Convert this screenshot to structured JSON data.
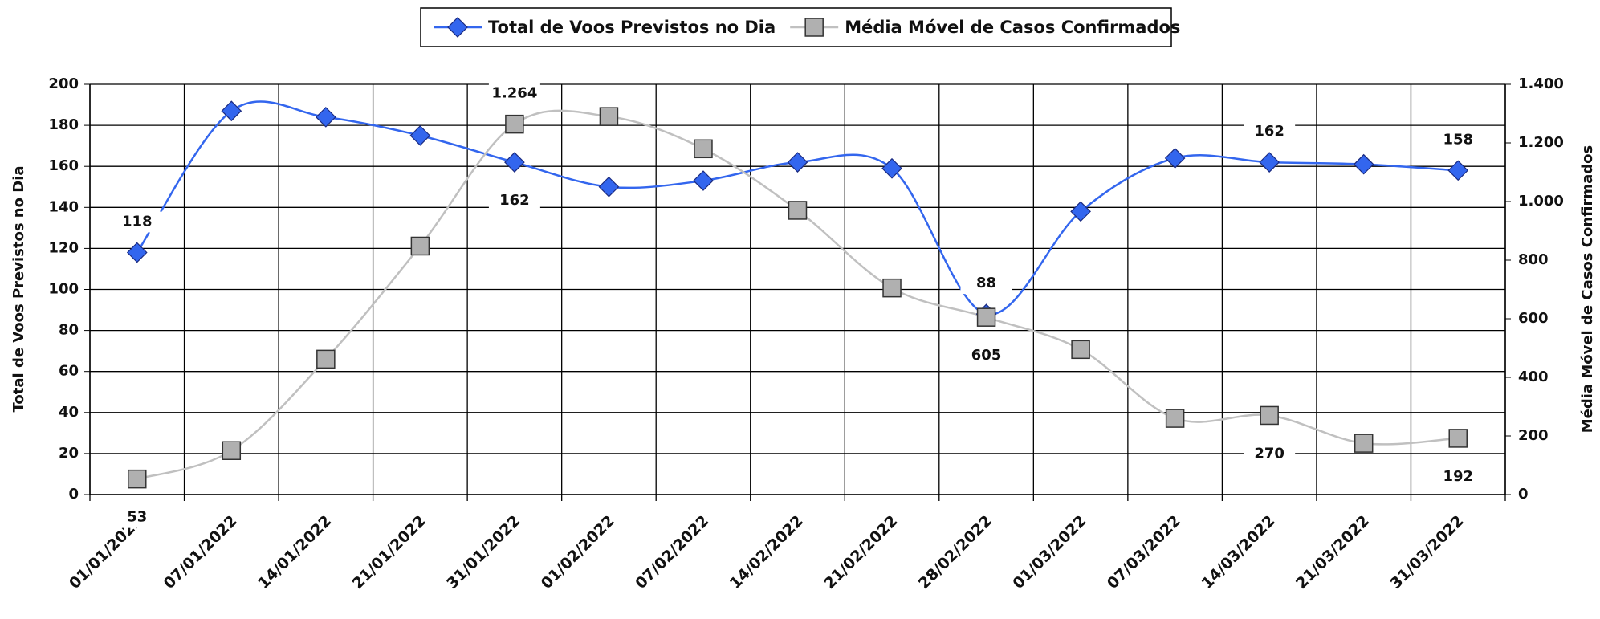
{
  "chart_data": {
    "type": "line",
    "categories": [
      "01/01/2022",
      "07/01/2022",
      "14/01/2022",
      "21/01/2022",
      "31/01/2022",
      "01/02/2022",
      "07/02/2022",
      "14/02/2022",
      "21/02/2022",
      "28/02/2022",
      "01/03/2022",
      "07/03/2022",
      "14/03/2022",
      "21/03/2022",
      "31/03/2022"
    ],
    "series": [
      {
        "name": "Total de Voos Previstos no Dia",
        "color": "#3366ee",
        "marker": "diamond",
        "values": [
          118,
          187,
          184,
          175,
          162,
          150,
          153,
          162,
          159,
          88,
          138,
          164,
          162,
          161,
          158
        ],
        "value_labels": [
          "118",
          null,
          null,
          null,
          "162",
          null,
          null,
          null,
          null,
          "88",
          null,
          null,
          "162",
          null,
          "158"
        ]
      },
      {
        "name": "Média Móvel de Casos Confirmados",
        "color": "#c0c0c0",
        "marker": "square",
        "axis": "y2",
        "values": [
          53,
          150,
          462,
          848,
          1264,
          1290,
          1180,
          970,
          705,
          605,
          495,
          260,
          270,
          175,
          192
        ],
        "value_labels": [
          "53",
          null,
          null,
          null,
          "1.264",
          null,
          null,
          null,
          null,
          "605",
          null,
          null,
          "270",
          null,
          "192"
        ]
      }
    ],
    "ylabel": "Total de Voos Previstos no Dia",
    "y2label": "Média Móvel de Casos Confirmados",
    "ylim": [
      0,
      200
    ],
    "yticks": [
      0,
      20,
      40,
      60,
      80,
      100,
      120,
      140,
      160,
      180,
      200
    ],
    "y2lim": [
      0,
      1400
    ],
    "y2ticks": [
      0,
      200,
      400,
      600,
      800,
      {
        "value": 1000,
        "label": "1.000"
      },
      {
        "value": 1200,
        "label": "1.200"
      },
      {
        "value": 1400,
        "label": "1.400"
      }
    ],
    "grid": true,
    "smooth": true,
    "legend": "top"
  }
}
